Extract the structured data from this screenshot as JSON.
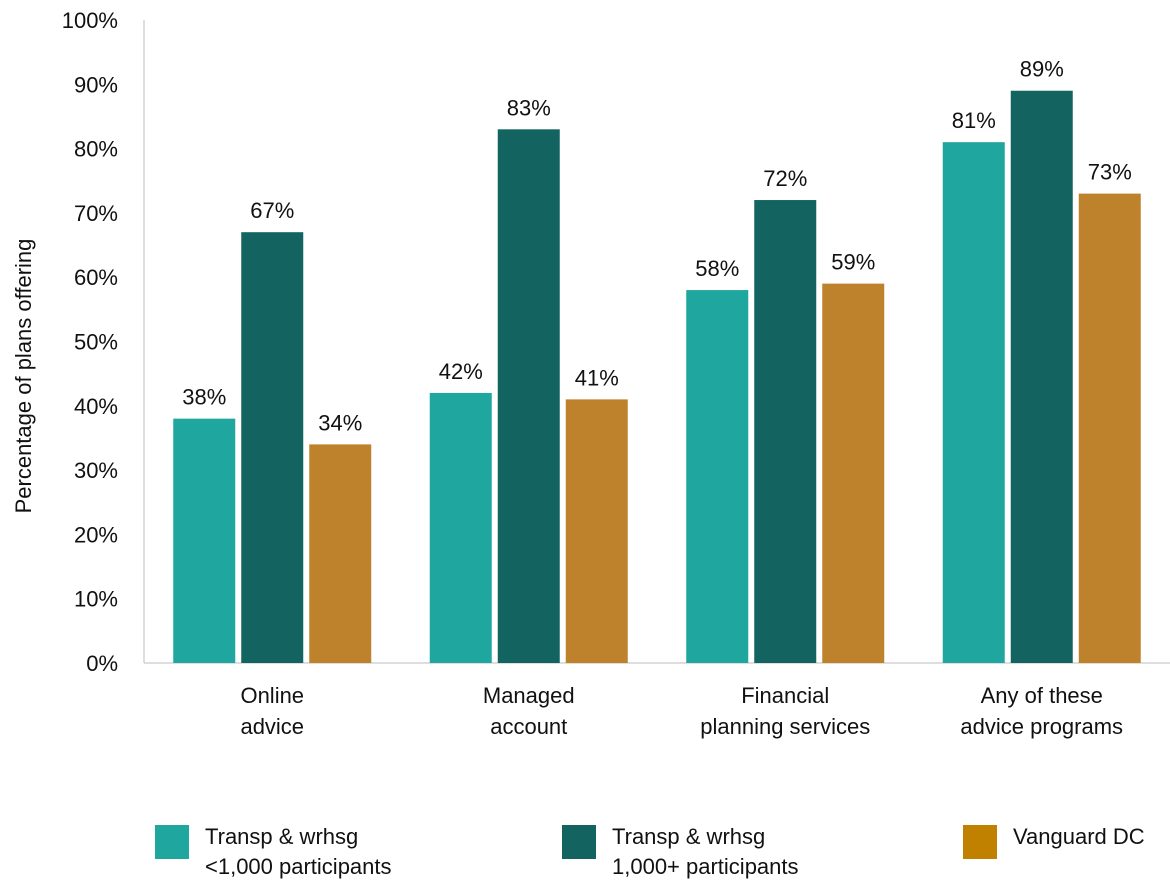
{
  "chart_data": {
    "type": "bar",
    "ylabel": "Percentage of plans offering",
    "ylim": [
      0,
      100
    ],
    "yticks": [
      "0%",
      "10%",
      "20%",
      "30%",
      "40%",
      "50%",
      "60%",
      "70%",
      "80%",
      "90%",
      "100%"
    ],
    "categories": [
      [
        "Online",
        "advice"
      ],
      [
        "Managed",
        "account"
      ],
      [
        "Financial",
        "planning services"
      ],
      [
        "Any of these",
        "advice programs"
      ]
    ],
    "series": [
      {
        "name_lines": [
          "Transp & wrhsg",
          "<1,000 participants"
        ],
        "color": "#1fa69e",
        "values": [
          38,
          42,
          58,
          81
        ],
        "labels": [
          "38%",
          "42%",
          "58%",
          "81%"
        ]
      },
      {
        "name_lines": [
          "Transp & wrhsg",
          "1,000+ participants"
        ],
        "color": "#136461",
        "values": [
          67,
          83,
          72,
          89
        ],
        "labels": [
          "67%",
          "83%",
          "72%",
          "89%"
        ]
      },
      {
        "name_lines": [
          "Vanguard DC"
        ],
        "color": "#be822d",
        "values": [
          34,
          41,
          59,
          73
        ],
        "labels": [
          "34%",
          "41%",
          "59%",
          "73%"
        ]
      }
    ],
    "grid": false,
    "legend_position": "bottom"
  },
  "legend_swatch_colors": [
    "#1fa69e",
    "#136461",
    "#c08000"
  ]
}
